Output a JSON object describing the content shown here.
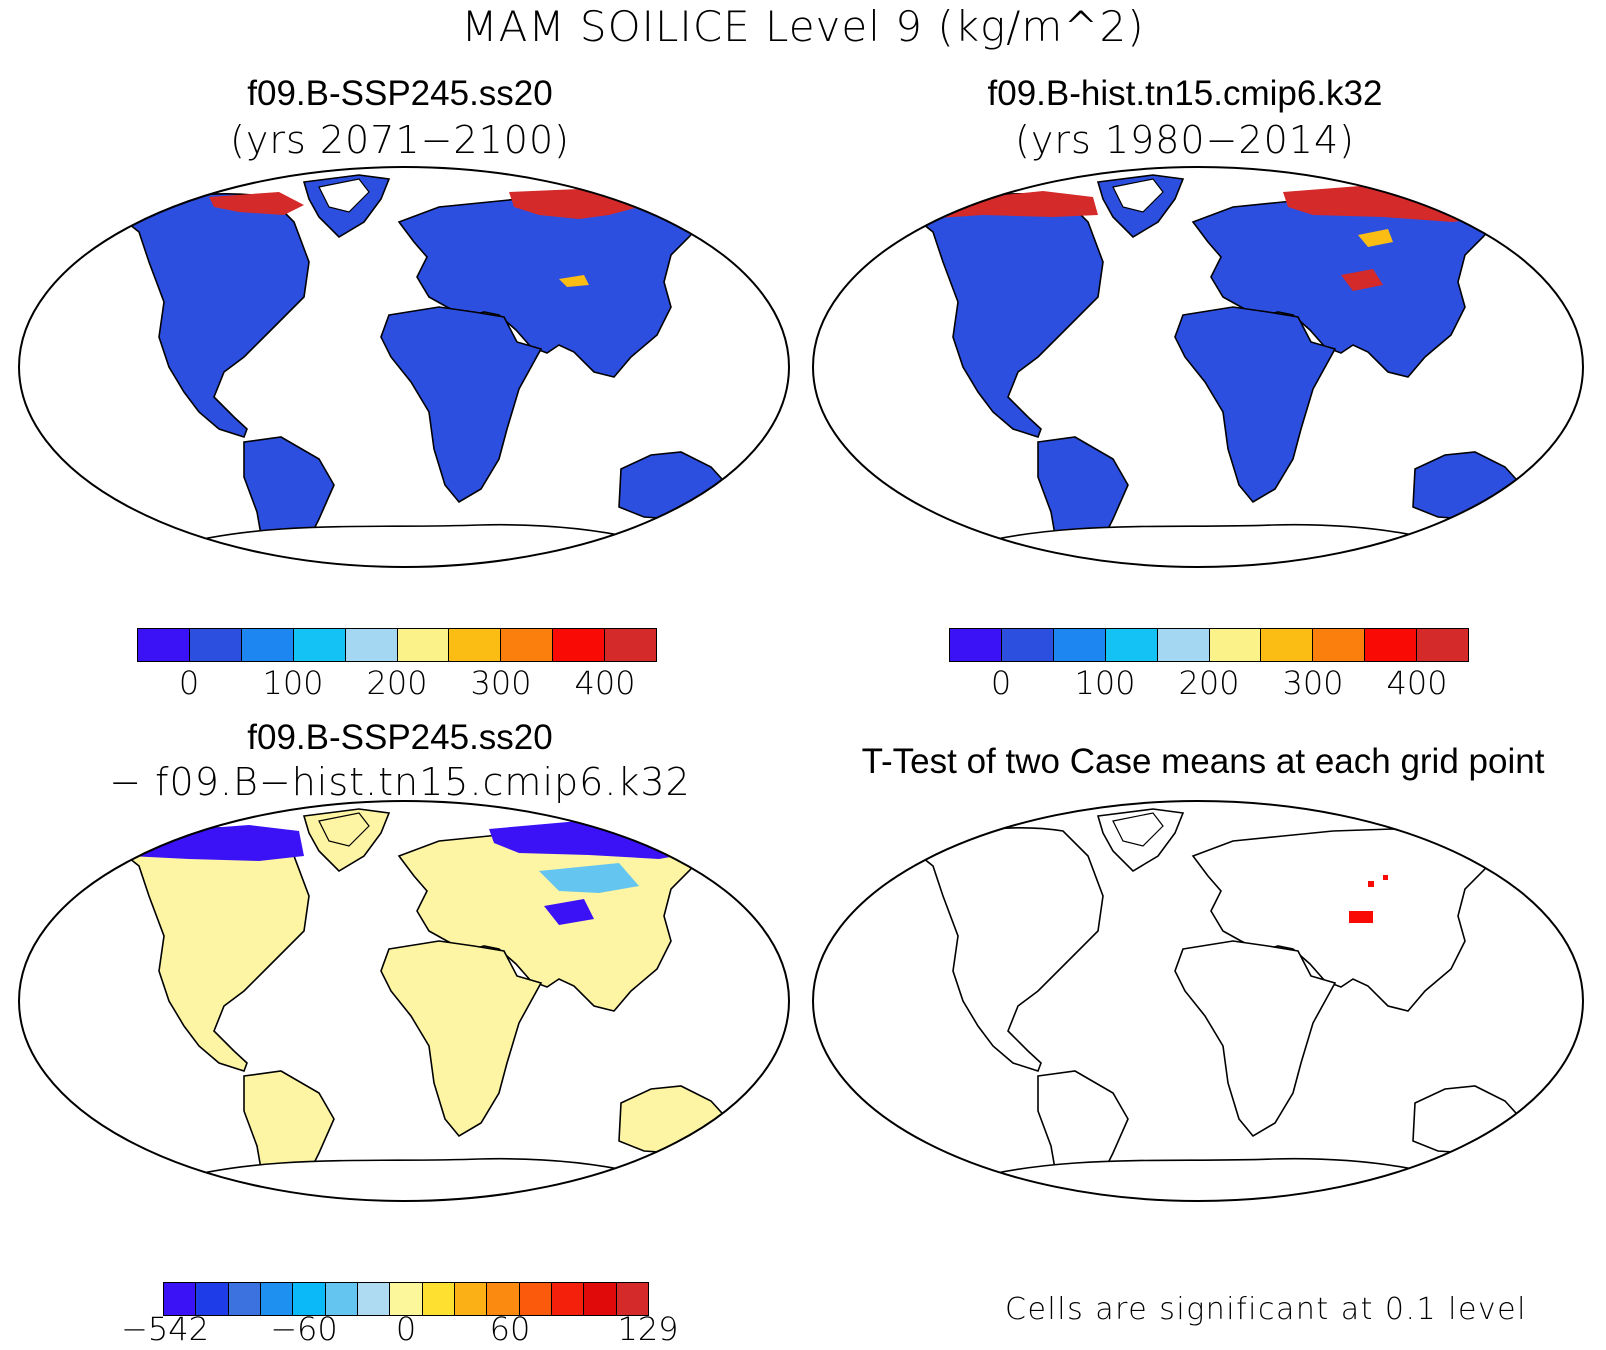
{
  "main_title": "MAM SOILICE Level 9 (kg/m^2)",
  "panels": {
    "ssp": {
      "case": "f09.B-SSP245.ss20",
      "years": "(yrs 2071−2100)"
    },
    "hist": {
      "case": "f09.B-hist.tn15.cmip6.k32",
      "years": "(yrs 1980−2014)"
    },
    "diff": {
      "case": "f09.B-SSP245.ss20",
      "minus": "− f09.B−hist.tn15.cmip6.k32"
    },
    "ttest": {
      "title": "T-Test of two Case means at each grid point",
      "note": "Cells are significant at 0.1 level"
    }
  },
  "colorbar_abs": {
    "colors": [
      "#3a12f5",
      "#2c4fe0",
      "#1e86f0",
      "#14c2f5",
      "#a4d8f2",
      "#fbf28a",
      "#fbbd14",
      "#fb7f0c",
      "#fa0a05",
      "#d42a2a"
    ],
    "labels": [
      "0",
      "100",
      "200",
      "300",
      "400"
    ]
  },
  "colorbar_diff": {
    "colors": [
      "#3a12f5",
      "#1e3ce8",
      "#3c72e0",
      "#1e90f0",
      "#0cb9f8",
      "#64c6f0",
      "#aedbf2",
      "#fdf79c",
      "#fde030",
      "#fbb016",
      "#fb8a10",
      "#fb5a0c",
      "#f5200c",
      "#e00a0a",
      "#d42a2a"
    ],
    "labels": [
      "−542",
      "−60",
      "0",
      "60",
      "129"
    ]
  },
  "map_colors": {
    "land_low": "#2d4fe0",
    "frozen_high": "#d42a2a",
    "diff_land": "#fdf5a4",
    "diff_negative": "#3a12f5",
    "diff_mid": "#64c6f0",
    "significant": "#fa0a05"
  }
}
